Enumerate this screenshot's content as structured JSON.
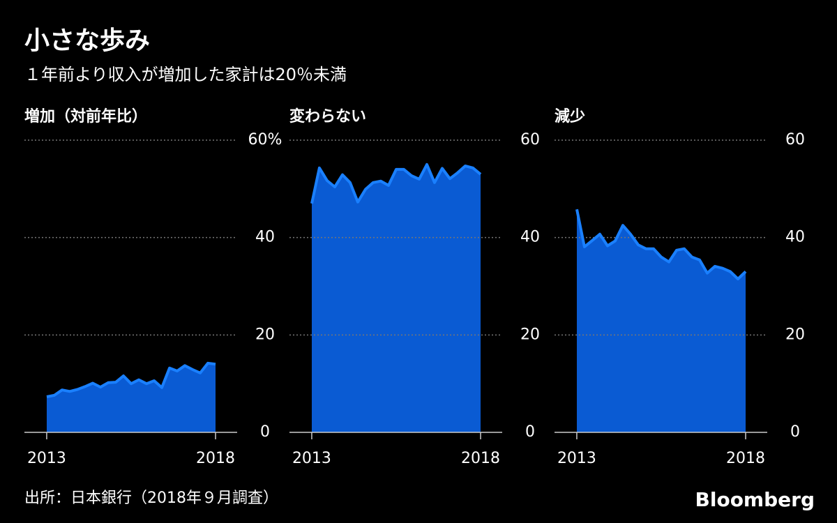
{
  "title": "小さな歩み",
  "subtitle": "１年前より収入が増加した家計は20％未満",
  "source": "出所：日本銀行（2018年９月調査）",
  "brand": "Bloomberg",
  "chart_data": [
    {
      "type": "area",
      "title": "増加（対前年比）",
      "x": [
        2013,
        2013.227,
        2013.455,
        2013.682,
        2013.909,
        2014.136,
        2014.364,
        2014.591,
        2014.818,
        2015.045,
        2015.273,
        2015.5,
        2015.727,
        2015.955,
        2016.182,
        2016.409,
        2016.636,
        2016.864,
        2017.091,
        2017.318,
        2017.545,
        2017.773,
        2018
      ],
      "values": [
        7.3,
        7.6,
        8.7,
        8.4,
        8.8,
        9.4,
        10.1,
        9.3,
        10.2,
        10.3,
        11.6,
        10.0,
        10.8,
        10.0,
        10.6,
        9.2,
        13.2,
        12.6,
        13.7,
        12.9,
        12.2,
        14.2,
        14.0
      ],
      "xlim": [
        2012.34,
        2018.64
      ],
      "xticks": [
        2013,
        2018
      ],
      "ylim": [
        0,
        60
      ],
      "yticks": [
        0,
        20,
        40,
        {
          "value": 60,
          "label": "60%"
        }
      ],
      "color": "#0a5bd3",
      "line_color": "#1a80ff",
      "grid": true
    },
    {
      "type": "area",
      "title": "変わらない",
      "x": [
        2013,
        2013.227,
        2013.455,
        2013.682,
        2013.909,
        2014.136,
        2014.364,
        2014.591,
        2014.818,
        2015.045,
        2015.273,
        2015.5,
        2015.727,
        2015.955,
        2016.182,
        2016.409,
        2016.636,
        2016.864,
        2017.091,
        2017.318,
        2017.545,
        2017.773,
        2018
      ],
      "values": [
        47.0,
        54.3,
        51.7,
        50.4,
        52.9,
        51.3,
        47.3,
        49.9,
        51.3,
        51.6,
        50.7,
        54.0,
        54.0,
        52.7,
        52.0,
        55.0,
        51.3,
        54.2,
        52.1,
        53.3,
        54.7,
        54.3,
        53.0
      ],
      "xlim": [
        2012.34,
        2018.64
      ],
      "xticks": [
        2013,
        2018
      ],
      "ylim": [
        0,
        60
      ],
      "yticks": [
        0,
        20,
        40,
        60
      ],
      "color": "#0a5bd3",
      "line_color": "#1a80ff",
      "grid": true
    },
    {
      "type": "area",
      "title": "減少",
      "x": [
        2013,
        2013.227,
        2013.455,
        2013.682,
        2013.909,
        2014.136,
        2014.364,
        2014.591,
        2014.818,
        2015.045,
        2015.273,
        2015.5,
        2015.727,
        2015.955,
        2016.182,
        2016.409,
        2016.636,
        2016.864,
        2017.091,
        2017.318,
        2017.545,
        2017.773,
        2018
      ],
      "values": [
        45.8,
        38.1,
        39.4,
        40.7,
        38.3,
        39.3,
        42.5,
        40.7,
        38.5,
        37.7,
        37.7,
        36.0,
        35.0,
        37.4,
        37.7,
        36.0,
        35.4,
        32.7,
        34.1,
        33.7,
        33.0,
        31.5,
        33.0
      ],
      "xlim": [
        2012.34,
        2018.64
      ],
      "xticks": [
        2013,
        2018
      ],
      "ylim": [
        0,
        60
      ],
      "yticks": [
        0,
        20,
        40,
        60
      ],
      "color": "#0a5bd3",
      "line_color": "#1a80ff",
      "grid": true
    }
  ]
}
